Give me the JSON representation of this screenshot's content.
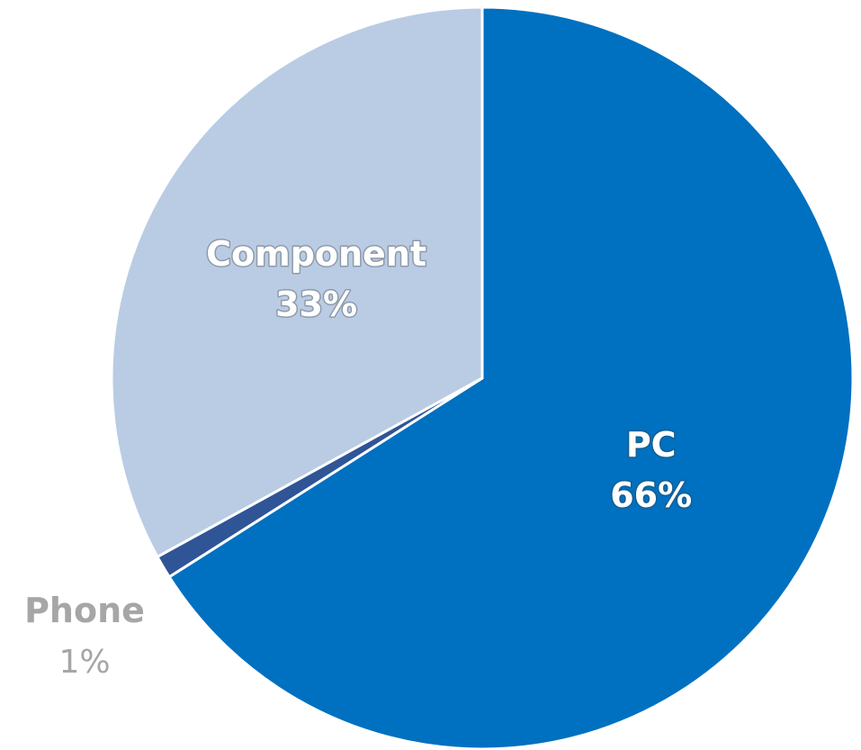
{
  "chart_data": {
    "type": "pie",
    "slices": [
      {
        "name": "PC",
        "value": 66,
        "label": "66%",
        "color": "#0070C0",
        "label_color": "#FFFFFF",
        "label_position": "inside"
      },
      {
        "name": "Phone",
        "value": 1,
        "label": "1%",
        "color": "#2F5597",
        "label_color": "#A6A6A6",
        "label_position": "outside"
      },
      {
        "name": "Component",
        "value": 33,
        "label": "33%",
        "color": "#B9CCE4",
        "label_color": "#FFFFFF",
        "label_position": "inside"
      }
    ],
    "start_angle_deg": 0,
    "direction": "clockwise"
  }
}
